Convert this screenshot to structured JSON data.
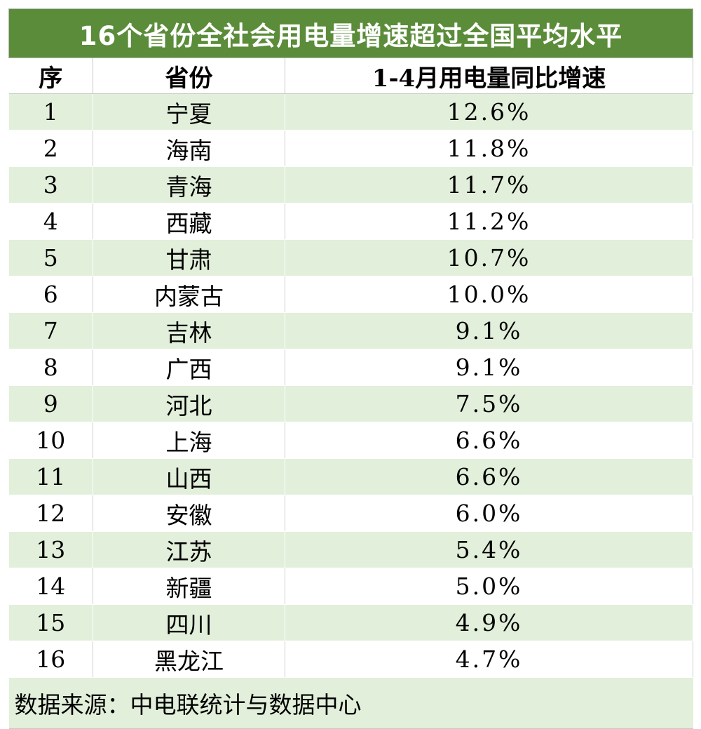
{
  "title": "16个省份全社会用电量增速超过全国平均水平",
  "headers": {
    "rank": "序",
    "province": "省份",
    "growth": "1-4月用电量同比增速"
  },
  "rows": [
    {
      "rank": "1",
      "province": "宁夏",
      "growth": "12.6%"
    },
    {
      "rank": "2",
      "province": "海南",
      "growth": "11.8%"
    },
    {
      "rank": "3",
      "province": "青海",
      "growth": "11.7%"
    },
    {
      "rank": "4",
      "province": "西藏",
      "growth": "11.2%"
    },
    {
      "rank": "5",
      "province": "甘肃",
      "growth": "10.7%"
    },
    {
      "rank": "6",
      "province": "内蒙古",
      "growth": "10.0%"
    },
    {
      "rank": "7",
      "province": "吉林",
      "growth": "9.1%"
    },
    {
      "rank": "8",
      "province": "广西",
      "growth": "9.1%"
    },
    {
      "rank": "9",
      "province": "河北",
      "growth": "7.5%"
    },
    {
      "rank": "10",
      "province": "上海",
      "growth": "6.6%"
    },
    {
      "rank": "11",
      "province": "山西",
      "growth": "6.6%"
    },
    {
      "rank": "12",
      "province": "安徽",
      "growth": "6.0%"
    },
    {
      "rank": "13",
      "province": "江苏",
      "growth": "5.4%"
    },
    {
      "rank": "14",
      "province": "新疆",
      "growth": "5.0%"
    },
    {
      "rank": "15",
      "province": "四川",
      "growth": "4.9%"
    },
    {
      "rank": "16",
      "province": "黑龙江",
      "growth": "4.7%"
    }
  ],
  "source": "数据来源：中电联统计与数据中心",
  "colors": {
    "title_bg": "#5b8c3a",
    "band": "#e2efda"
  }
}
